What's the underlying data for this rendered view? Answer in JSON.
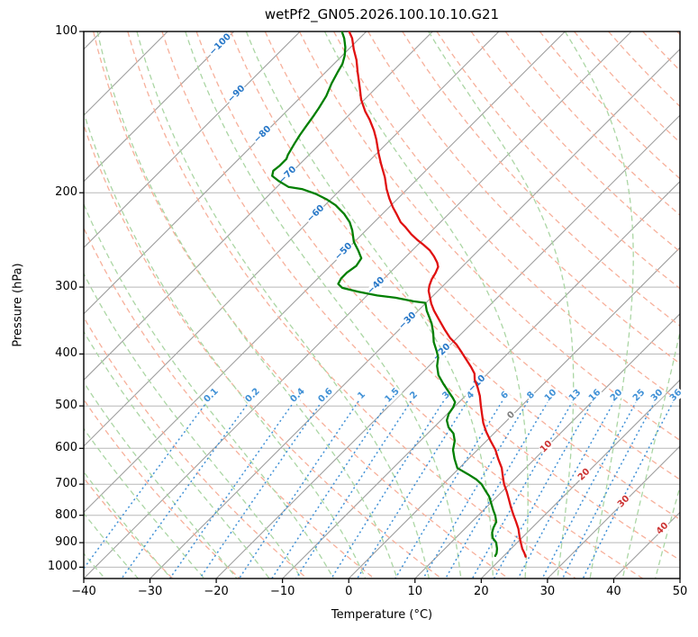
{
  "title": "wetPf2_GN05.2026.100.10.10.G21",
  "axes": {
    "x_label": "Temperature (°C)",
    "y_label": "Pressure (hPa)",
    "x_ticks": [
      {
        "value": -40,
        "label": "−40"
      },
      {
        "value": -30,
        "label": "−30"
      },
      {
        "value": -20,
        "label": "−20"
      },
      {
        "value": -10,
        "label": "−10"
      },
      {
        "value": 0,
        "label": "0"
      },
      {
        "value": 10,
        "label": "10"
      },
      {
        "value": 20,
        "label": "20"
      },
      {
        "value": 30,
        "label": "30"
      },
      {
        "value": 40,
        "label": "40"
      },
      {
        "value": 50,
        "label": "50"
      }
    ],
    "y_ticks": [
      {
        "value": 100,
        "label": "100"
      },
      {
        "value": 200,
        "label": "200"
      },
      {
        "value": 300,
        "label": "300"
      },
      {
        "value": 400,
        "label": "400"
      },
      {
        "value": 500,
        "label": "500"
      },
      {
        "value": 600,
        "label": "600"
      },
      {
        "value": 700,
        "label": "700"
      },
      {
        "value": 800,
        "label": "800"
      },
      {
        "value": 900,
        "label": "900"
      },
      {
        "value": 1000,
        "label": "1000"
      }
    ],
    "x_range": [
      -40,
      50
    ],
    "pressure_top": 100,
    "pressure_bottom": 1050,
    "y_scale": "log"
  },
  "chart_data": {
    "type": "line",
    "chart_kind": "skew-t-log-p sounding",
    "title": "wetPf2_GN05.2026.100.10.10.G21",
    "xlabel": "Temperature (°C)",
    "ylabel": "Pressure (hPa)",
    "series": [
      {
        "name": "temperature",
        "units": {
          "p": "hPa",
          "t": "degC"
        },
        "points": [
          [
            100,
            -82.6
          ],
          [
            103,
            -81.1
          ],
          [
            108,
            -79.2
          ],
          [
            113,
            -77.2
          ],
          [
            119,
            -75.2
          ],
          [
            127,
            -72.6
          ],
          [
            134,
            -70.5
          ],
          [
            141,
            -68.1
          ],
          [
            146,
            -66.2
          ],
          [
            153,
            -63.9
          ],
          [
            159,
            -62.2
          ],
          [
            169,
            -59.7
          ],
          [
            177,
            -57.7
          ],
          [
            187,
            -55.2
          ],
          [
            197,
            -53.1
          ],
          [
            205,
            -51.3
          ],
          [
            213,
            -49.4
          ],
          [
            219,
            -47.9
          ],
          [
            227,
            -46
          ],
          [
            232,
            -44.5
          ],
          [
            239,
            -42.6
          ],
          [
            245,
            -40.8
          ],
          [
            250,
            -39.2
          ],
          [
            256,
            -37.4
          ],
          [
            263,
            -35.8
          ],
          [
            270,
            -34.4
          ],
          [
            275,
            -33.6
          ],
          [
            282,
            -33.1
          ],
          [
            290,
            -32.7
          ],
          [
            298,
            -32.1
          ],
          [
            305,
            -31.4
          ],
          [
            313,
            -30.3
          ],
          [
            322,
            -29.1
          ],
          [
            332,
            -27.6
          ],
          [
            345,
            -25.5
          ],
          [
            361,
            -23
          ],
          [
            373,
            -21.1
          ],
          [
            384,
            -19.1
          ],
          [
            398,
            -17
          ],
          [
            410,
            -15.3
          ],
          [
            423,
            -13.5
          ],
          [
            435,
            -12
          ],
          [
            447,
            -11
          ],
          [
            461,
            -9.5
          ],
          [
            479,
            -7.8
          ],
          [
            498,
            -6.3
          ],
          [
            517,
            -4.8
          ],
          [
            538,
            -3.2
          ],
          [
            559,
            -1.4
          ],
          [
            581,
            0.6
          ],
          [
            604,
            2.7
          ],
          [
            628,
            4.5
          ],
          [
            653,
            6.4
          ],
          [
            673,
            7.6
          ],
          [
            700,
            9.2
          ],
          [
            724,
            10.8
          ],
          [
            747,
            12.2
          ],
          [
            771,
            13.6
          ],
          [
            798,
            15.2
          ],
          [
            823,
            16.7
          ],
          [
            848,
            18.1
          ],
          [
            878,
            19.5
          ],
          [
            899,
            20.5
          ],
          [
            924,
            21.7
          ],
          [
            942,
            22.7
          ],
          [
            956,
            23.4
          ]
        ]
      },
      {
        "name": "dewpoint",
        "units": {
          "p": "hPa",
          "t": "degC"
        },
        "points": [
          [
            100,
            -83.7
          ],
          [
            103,
            -82.3
          ],
          [
            107,
            -80.8
          ],
          [
            111,
            -79.6
          ],
          [
            115,
            -78.7
          ],
          [
            119,
            -78.2
          ],
          [
            125,
            -77.4
          ],
          [
            132,
            -76.3
          ],
          [
            139,
            -75.6
          ],
          [
            144,
            -75.2
          ],
          [
            150,
            -74.8
          ],
          [
            156,
            -74.4
          ],
          [
            162,
            -73.9
          ],
          [
            170,
            -73.2
          ],
          [
            173,
            -72.8
          ],
          [
            178,
            -72.8
          ],
          [
            182,
            -73
          ],
          [
            186,
            -72.4
          ],
          [
            190,
            -70.7
          ],
          [
            195,
            -68.3
          ],
          [
            197,
            -65.8
          ],
          [
            201,
            -63.1
          ],
          [
            206,
            -60.5
          ],
          [
            211,
            -58.4
          ],
          [
            219,
            -55.8
          ],
          [
            227,
            -53.7
          ],
          [
            235,
            -52.1
          ],
          [
            247,
            -50.1
          ],
          [
            256,
            -48.2
          ],
          [
            265,
            -46.5
          ],
          [
            274,
            -46.1
          ],
          [
            282,
            -46.5
          ],
          [
            289,
            -46.5
          ],
          [
            296,
            -46.1
          ],
          [
            301,
            -44.9
          ],
          [
            306,
            -41.9
          ],
          [
            311,
            -38.5
          ],
          [
            314,
            -35.4
          ],
          [
            319,
            -32.1
          ],
          [
            321,
            -30.1
          ],
          [
            332,
            -28.7
          ],
          [
            341,
            -27.4
          ],
          [
            351,
            -26
          ],
          [
            365,
            -24.4
          ],
          [
            380,
            -22.9
          ],
          [
            395,
            -21.1
          ],
          [
            406,
            -19.9
          ],
          [
            421,
            -18.8
          ],
          [
            438,
            -17.2
          ],
          [
            455,
            -15.1
          ],
          [
            470,
            -13.2
          ],
          [
            483,
            -11.6
          ],
          [
            492,
            -10.6
          ],
          [
            503,
            -10.1
          ],
          [
            517,
            -9.8
          ],
          [
            532,
            -9.1
          ],
          [
            548,
            -7.8
          ],
          [
            563,
            -6.1
          ],
          [
            581,
            -4.8
          ],
          [
            604,
            -3.7
          ],
          [
            628,
            -2.1
          ],
          [
            653,
            -0.3
          ],
          [
            671,
            2.3
          ],
          [
            686,
            4.3
          ],
          [
            700,
            5.8
          ],
          [
            719,
            7.3
          ],
          [
            738,
            8.8
          ],
          [
            756,
            9.9
          ],
          [
            783,
            11.5
          ],
          [
            801,
            12.6
          ],
          [
            823,
            13.7
          ],
          [
            845,
            14.2
          ],
          [
            862,
            14.7
          ],
          [
            882,
            15.6
          ],
          [
            899,
            16.8
          ],
          [
            924,
            17.9
          ],
          [
            942,
            18.5
          ],
          [
            953,
            18.7
          ]
        ]
      }
    ],
    "isotherms": {
      "start": -120,
      "end": 50,
      "step": 10
    },
    "isotherm_labels": [
      {
        "value": -100,
        "label": "−100",
        "y": 50
      },
      {
        "value": -90,
        "label": "−90",
        "y": 105
      },
      {
        "value": -80,
        "label": "−80",
        "y": 150
      },
      {
        "value": -70,
        "label": "−70",
        "y": 195
      },
      {
        "value": -60,
        "label": "−60",
        "y": 238
      },
      {
        "value": -50,
        "label": "−50",
        "y": 280
      },
      {
        "value": -40,
        "label": "−40",
        "y": 318
      },
      {
        "value": -30,
        "label": "−30",
        "y": 357
      },
      {
        "value": -20,
        "label": "−20",
        "y": 392
      },
      {
        "value": -10,
        "label": "−10",
        "y": 427
      },
      {
        "value": 0,
        "label": "0",
        "y": 462
      },
      {
        "value": 10,
        "label": "10",
        "y": 497
      },
      {
        "value": 20,
        "label": "20",
        "y": 528
      },
      {
        "value": 30,
        "label": "30",
        "y": 558
      },
      {
        "value": 40,
        "label": "40",
        "y": 588
      }
    ],
    "dry_adiabats": {
      "start": -30,
      "end": 190,
      "step": 10
    },
    "moist_adiabats": {
      "start": -40,
      "end": 45,
      "step": 5
    },
    "mixing_ratios": [
      {
        "value": 0.1,
        "label": "0.1"
      },
      {
        "value": 0.2,
        "label": "0.2"
      },
      {
        "value": 0.4,
        "label": "0.4"
      },
      {
        "value": 0.6,
        "label": "0.6"
      },
      {
        "value": 1,
        "label": "1"
      },
      {
        "value": 1.5,
        "label": "1.5"
      },
      {
        "value": 2,
        "label": "2"
      },
      {
        "value": 3,
        "label": "3"
      },
      {
        "value": 4,
        "label": "4"
      },
      {
        "value": 6,
        "label": "6"
      },
      {
        "value": 8,
        "label": "8"
      },
      {
        "value": 10,
        "label": "10"
      },
      {
        "value": 13,
        "label": "13"
      },
      {
        "value": 16,
        "label": "16"
      },
      {
        "value": 20,
        "label": "20"
      },
      {
        "value": 25,
        "label": "25"
      },
      {
        "value": 30,
        "label": "30"
      },
      {
        "value": 36,
        "label": "36"
      }
    ],
    "grid": true,
    "legend": "none"
  },
  "colors": {
    "temperature": "#e01010",
    "dewpoint": "#007f00",
    "isotherm": "#9e9e9e",
    "pressure_grid": "#b8b8b8",
    "dry_adiabat": "#f7b09b",
    "moist_adiabat": "#abd6a4",
    "mixing_ratio": "#4191d6",
    "label_negative": "#2878c8",
    "label_zero": "#7f7f7f",
    "label_positive": "#cc3333",
    "spine": "#000000"
  }
}
